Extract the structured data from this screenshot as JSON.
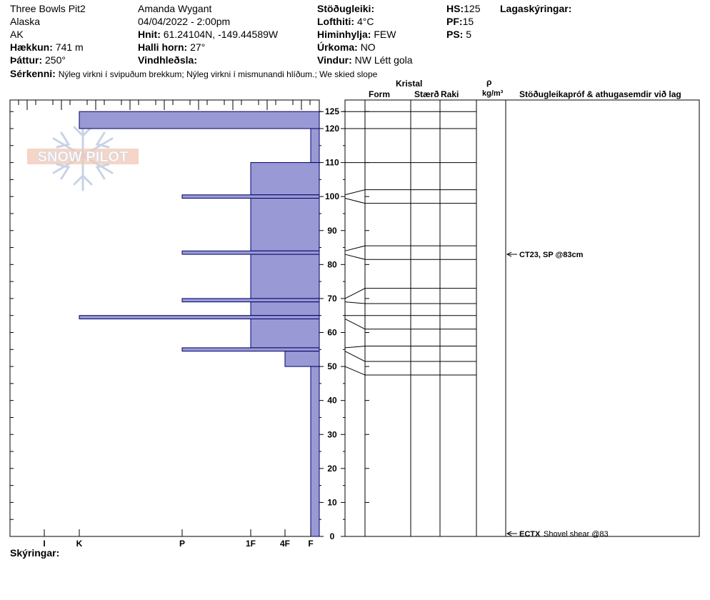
{
  "header": {
    "site": "Three Bowls Pit2",
    "region": "Alaska",
    "state": "AK",
    "elevation": {
      "label": "Hækkun:",
      "value": "741 m"
    },
    "aspect": {
      "label": "Þáttur:",
      "value": "250°"
    },
    "observer": "Amanda Wygant",
    "datetime": "04/04/2022 - 2:00pm",
    "coords": {
      "label": "Hnit:",
      "value": "61.24104N, -149.44589W"
    },
    "slope": {
      "label": "Halli horn:",
      "value": "27°"
    },
    "wind_loading": {
      "label": "Vindhleðsla:",
      "value": ""
    },
    "stability": {
      "label": "Stöðugleiki:",
      "value": ""
    },
    "air_temp": {
      "label": "Lofthiti:",
      "value": "4°C"
    },
    "sky": {
      "label": "Himinhylja:",
      "value": "FEW"
    },
    "precip": {
      "label": "Úrkoma:",
      "value": "NO"
    },
    "wind": {
      "label": "Vindur:",
      "value": "NW Létt gola"
    },
    "hs": {
      "label": "HS:",
      "value": "125"
    },
    "pf": {
      "label": "PF:",
      "value": "15"
    },
    "ps": {
      "label": "PS:",
      "value": "5"
    },
    "layer_notes_label": "Lagaskýringar:",
    "features": {
      "label": "Sérkenni:",
      "value": "Nýleg virkni í svipuðum brekkum; Nýleg virkni í mismunandi hlíðum.; We skied slope"
    },
    "comments_label": "Skýringar:"
  },
  "logo": {
    "text": "SNOW PILOT"
  },
  "columns": {
    "kristal": "Kristal",
    "form": "Form",
    "size": "Stærð",
    "moisture": "Raki",
    "rho": "ρ",
    "density_unit": "kg/m³",
    "tests": "Stöðugleikapróf & athugasemdir við lag"
  },
  "chart_data": {
    "type": "bar",
    "orientation": "horizontal",
    "hardness_ticks": [
      "I",
      "K",
      "P",
      "1F",
      "4F",
      "F"
    ],
    "depth_ticks": [
      0,
      10,
      20,
      30,
      40,
      50,
      60,
      70,
      80,
      90,
      100,
      110,
      120,
      125
    ],
    "ylim": [
      0,
      125
    ],
    "bar_color": "#9999d6",
    "layers": [
      {
        "top": 125,
        "bottom": 120,
        "hardness": "K"
      },
      {
        "top": 120,
        "bottom": 110,
        "hardness": "F"
      },
      {
        "top": 110,
        "bottom": 100.5,
        "hardness": "1F"
      },
      {
        "top": 100.5,
        "bottom": 99.5,
        "hardness": "P"
      },
      {
        "top": 99.5,
        "bottom": 84,
        "hardness": "1F"
      },
      {
        "top": 84,
        "bottom": 83,
        "hardness": "P"
      },
      {
        "top": 83,
        "bottom": 70,
        "hardness": "1F"
      },
      {
        "top": 70,
        "bottom": 69,
        "hardness": "P"
      },
      {
        "top": 69,
        "bottom": 65,
        "hardness": "1F"
      },
      {
        "top": 65,
        "bottom": 64,
        "hardness": "K"
      },
      {
        "top": 64,
        "bottom": 55.5,
        "hardness": "1F"
      },
      {
        "top": 55.5,
        "bottom": 54.5,
        "hardness": "P"
      },
      {
        "top": 54.5,
        "bottom": 50,
        "hardness": "4F"
      },
      {
        "top": 50,
        "bottom": 0,
        "hardness": "F"
      }
    ],
    "grid_lines": [
      125,
      120,
      110,
      102,
      98,
      85.5,
      81.5,
      73,
      68.5,
      65,
      61,
      56,
      51.5,
      47.5
    ],
    "layer_points": [
      125,
      120,
      110,
      100.5,
      99.5,
      84,
      83,
      70,
      69,
      65,
      64,
      55.5,
      54.5,
      50
    ],
    "tests": [
      {
        "depth": 83,
        "text": "CT23, SP @83cm"
      },
      {
        "depth": 0,
        "code": "ECTX",
        "text": "Shovel shear @83"
      }
    ]
  }
}
